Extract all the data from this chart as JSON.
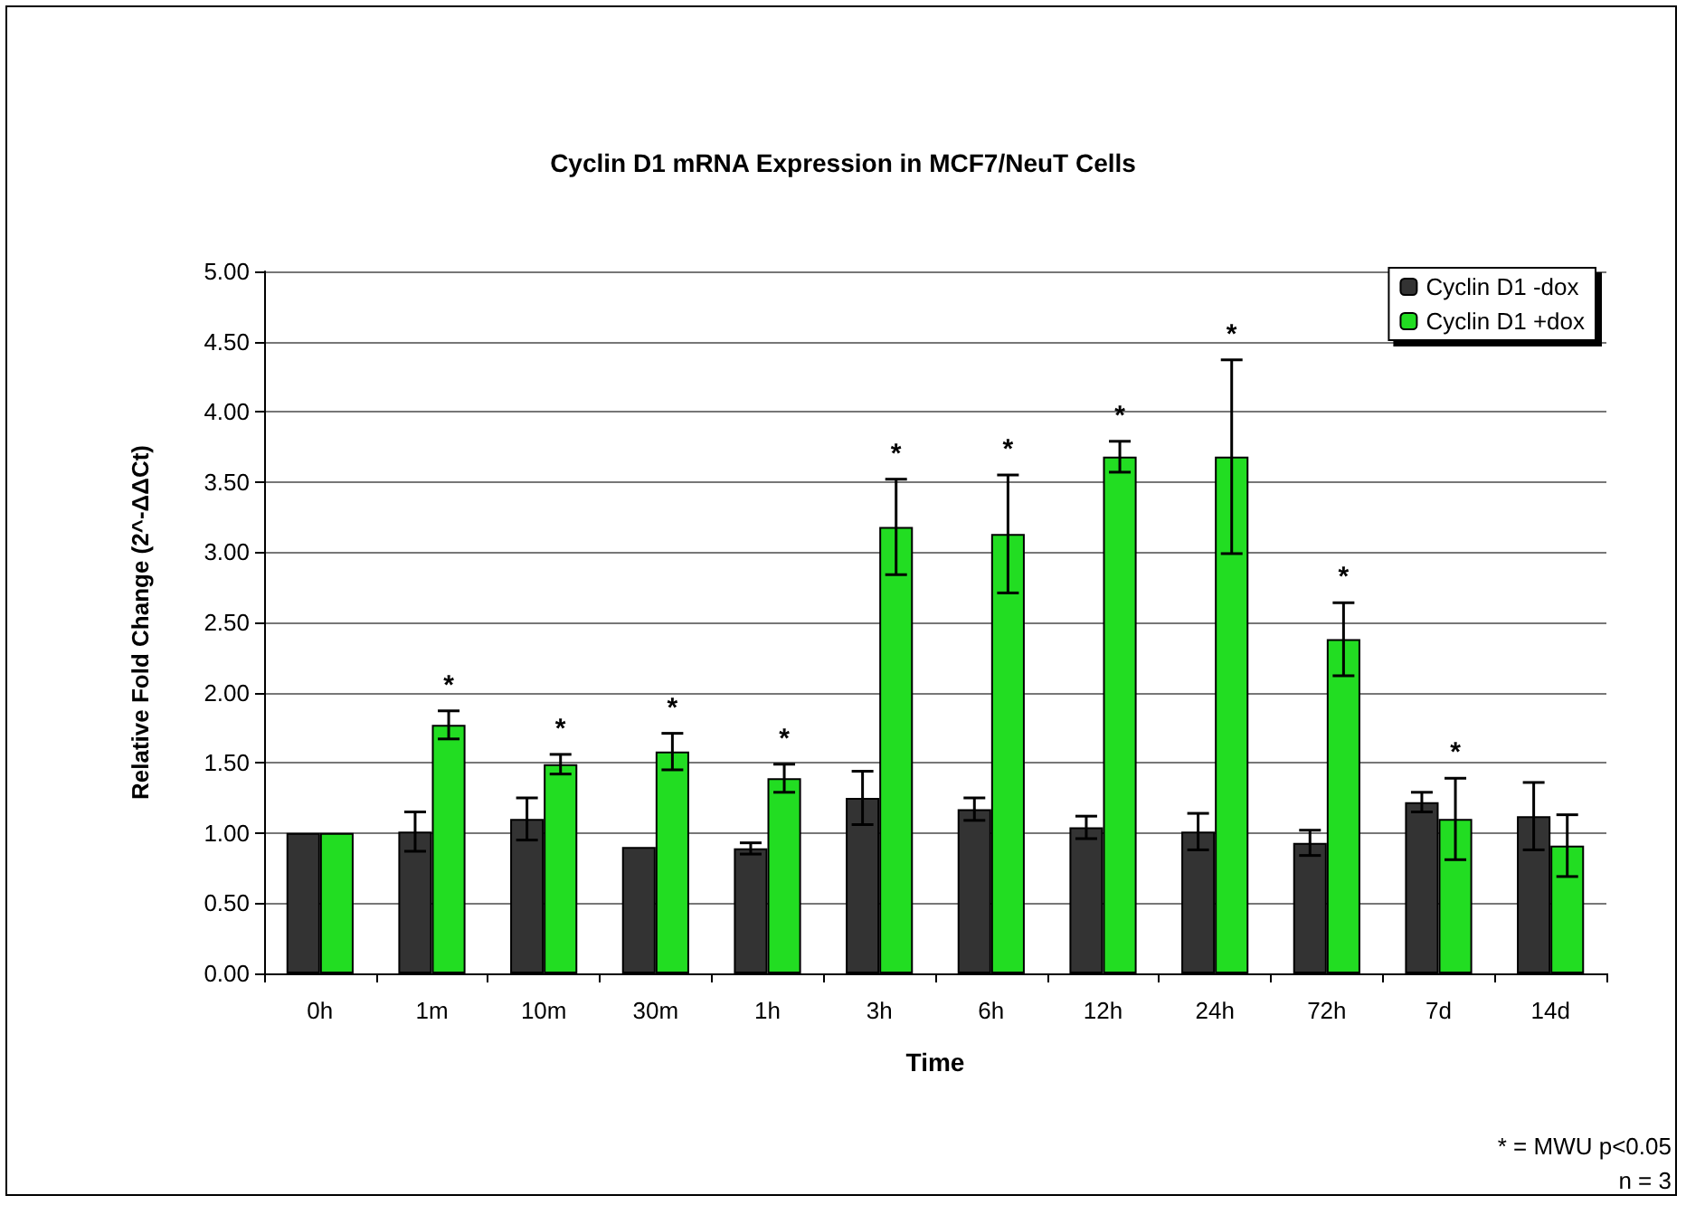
{
  "chart_data": {
    "type": "bar",
    "title": "Cyclin D1 mRNA Expression in MCF7/NeuT Cells",
    "xlabel": "Time",
    "ylabel": "Relative Fold Change (2^-ΔΔCt)",
    "categories": [
      "0h",
      "1m",
      "10m",
      "30m",
      "1h",
      "3h",
      "6h",
      "12h",
      "24h",
      "72h",
      "7d",
      "14d"
    ],
    "series": [
      {
        "name": "Cyclin D1 -dox",
        "color": "#333333",
        "values": [
          1.0,
          1.01,
          1.1,
          0.9,
          0.89,
          1.25,
          1.17,
          1.04,
          1.01,
          0.93,
          1.22,
          1.12
        ],
        "errors": [
          null,
          0.14,
          0.15,
          null,
          0.04,
          0.19,
          0.08,
          0.08,
          0.13,
          0.09,
          0.07,
          0.24
        ]
      },
      {
        "name": "Cyclin D1 +dox",
        "color": "#22dd22",
        "values": [
          1.0,
          1.77,
          1.49,
          1.58,
          1.39,
          3.18,
          3.13,
          3.68,
          3.68,
          2.38,
          1.1,
          0.91
        ],
        "errors": [
          null,
          0.1,
          0.07,
          0.13,
          0.1,
          0.34,
          0.42,
          0.11,
          0.69,
          0.26,
          0.29,
          0.22
        ]
      }
    ],
    "ylim": [
      0,
      5
    ],
    "yticks": [
      {
        "value": 0,
        "label": "0.00"
      },
      {
        "value": 0.5,
        "label": "0.50"
      },
      {
        "value": 1,
        "label": "1.00"
      },
      {
        "value": 1.5,
        "label": "1.50"
      },
      {
        "value": 2,
        "label": "2.00"
      },
      {
        "value": 2.5,
        "label": "2.50"
      },
      {
        "value": 3,
        "label": "3.00"
      },
      {
        "value": 3.5,
        "label": "3.50"
      },
      {
        "value": 4,
        "label": "4.00"
      },
      {
        "value": 4.5,
        "label": "4.50"
      },
      {
        "value": 5,
        "label": "5.00"
      }
    ],
    "grid": "y",
    "legend": "top right",
    "annotations": [
      {
        "text": "*",
        "x": "1m",
        "y": 1.77
      },
      {
        "text": "*",
        "x": "10m",
        "y": 1.49
      },
      {
        "text": "*",
        "x": "30m",
        "y": 1.58
      },
      {
        "text": "*",
        "x": "1h",
        "y": 1.39
      },
      {
        "text": "*",
        "x": "3h",
        "y": 3.18
      },
      {
        "text": "*",
        "x": "6h",
        "y": 3.13
      },
      {
        "text": "*",
        "x": "12h",
        "y": 3.68
      },
      {
        "text": "*",
        "x": "24h",
        "y": 4.37
      },
      {
        "text": "*",
        "x": "72h",
        "y": 2.38
      },
      {
        "text": "*",
        "x": "7d",
        "y": 1.1
      },
      "* = MWU p<0.05",
      "n = 3"
    ]
  }
}
